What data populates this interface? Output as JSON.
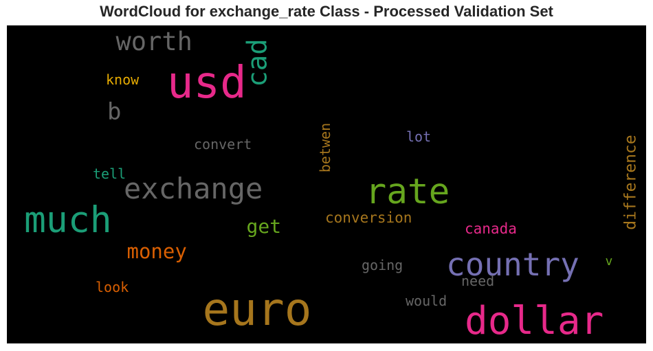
{
  "chart_data": {
    "type": "wordcloud",
    "title": "WordCloud for exchange_rate Class - Processed Validation Set",
    "background": "#000000",
    "words": [
      {
        "text": "euro",
        "weight": 1.0,
        "color": "#a6761d",
        "vertical": false
      },
      {
        "text": "usd",
        "weight": 0.97,
        "color": "#e7298a",
        "vertical": false
      },
      {
        "text": "dollar",
        "weight": 0.84,
        "color": "#e7298a",
        "vertical": false
      },
      {
        "text": "much",
        "weight": 0.8,
        "color": "#1b9e77",
        "vertical": false
      },
      {
        "text": "rate",
        "weight": 0.76,
        "color": "#66a61e",
        "vertical": false
      },
      {
        "text": "country",
        "weight": 0.68,
        "color": "#7570b3",
        "vertical": false
      },
      {
        "text": "exchange",
        "weight": 0.62,
        "color": "#666666",
        "vertical": false
      },
      {
        "text": "cad",
        "weight": 0.58,
        "color": "#1b9e77",
        "vertical": true
      },
      {
        "text": "worth",
        "weight": 0.55,
        "color": "#666666",
        "vertical": false
      },
      {
        "text": "b",
        "weight": 0.5,
        "color": "#666666",
        "vertical": false
      },
      {
        "text": "money",
        "weight": 0.42,
        "color": "#d95f02",
        "vertical": false
      },
      {
        "text": "get",
        "weight": 0.4,
        "color": "#66a61e",
        "vertical": false
      },
      {
        "text": "difference",
        "weight": 0.32,
        "color": "#a6761d",
        "vertical": true
      },
      {
        "text": "canada",
        "weight": 0.3,
        "color": "#e7298a",
        "vertical": false
      },
      {
        "text": "conversion",
        "weight": 0.3,
        "color": "#a6761d",
        "vertical": false
      },
      {
        "text": "betwen",
        "weight": 0.29,
        "color": "#a6761d",
        "vertical": true
      },
      {
        "text": "would",
        "weight": 0.29,
        "color": "#666666",
        "vertical": false
      },
      {
        "text": "need",
        "weight": 0.28,
        "color": "#666666",
        "vertical": false
      },
      {
        "text": "going",
        "weight": 0.28,
        "color": "#666666",
        "vertical": false
      },
      {
        "text": "convert",
        "weight": 0.28,
        "color": "#666666",
        "vertical": false
      },
      {
        "text": "look",
        "weight": 0.28,
        "color": "#d95f02",
        "vertical": false
      },
      {
        "text": "know",
        "weight": 0.28,
        "color": "#e6ab02",
        "vertical": false
      },
      {
        "text": "tell",
        "weight": 0.28,
        "color": "#1b9e77",
        "vertical": false
      },
      {
        "text": "lot",
        "weight": 0.28,
        "color": "#7570b3",
        "vertical": false
      },
      {
        "text": "v",
        "weight": 0.25,
        "color": "#66a61e",
        "vertical": false
      }
    ]
  }
}
